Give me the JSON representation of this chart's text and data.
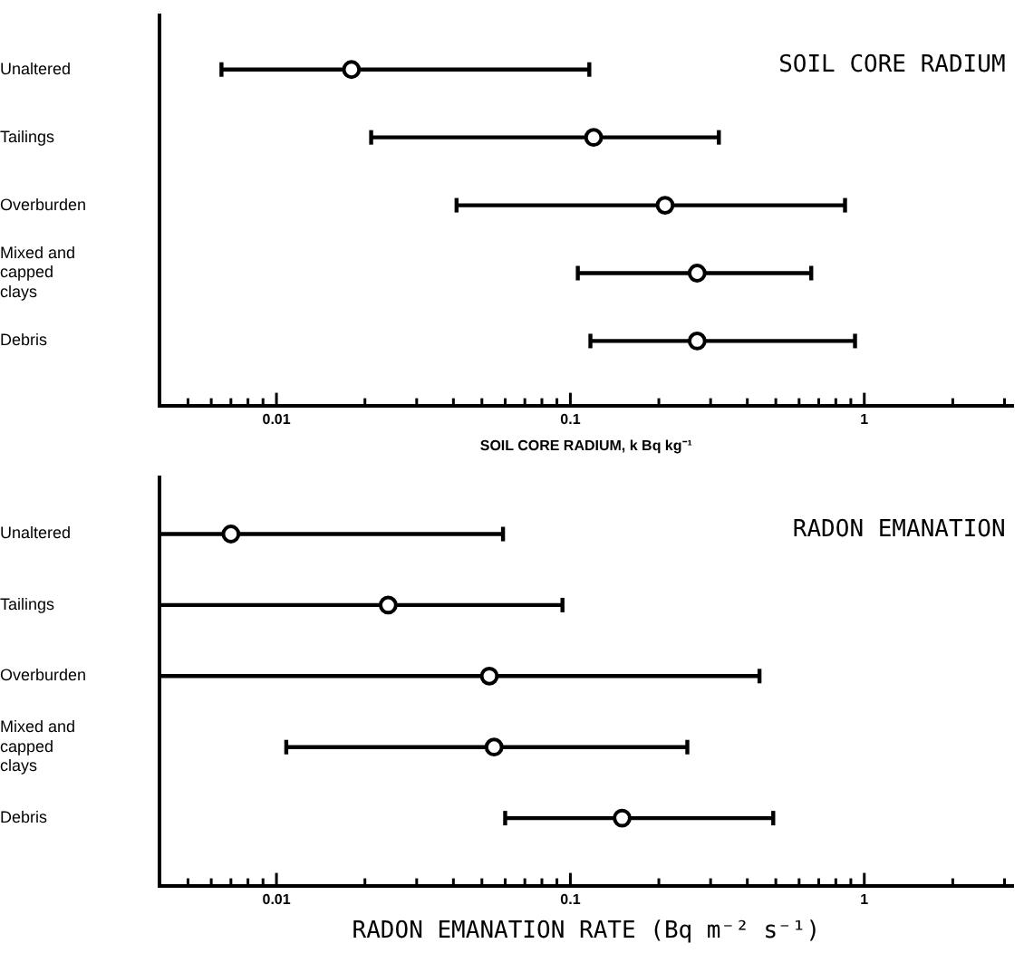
{
  "chart_data": [
    {
      "type": "scatter",
      "orientation": "horizontal",
      "title": "SOIL CORE RADIUM",
      "xlabel": "SOIL CORE RADIUM, k Bq kg⁻¹",
      "categories": [
        "Unaltered",
        "Tailings",
        "Overburden",
        "Mixed and capped clays",
        "Debris"
      ],
      "values": [
        0.018,
        0.12,
        0.21,
        0.27,
        0.27
      ],
      "errors": [
        [
          0.0065,
          0.116
        ],
        [
          0.021,
          0.32
        ],
        [
          0.041,
          0.86
        ],
        [
          0.106,
          0.66
        ],
        [
          0.117,
          0.93
        ]
      ],
      "color": "#000000",
      "marker": "circle",
      "log": "x",
      "xlim": [
        0.004,
        3.2
      ],
      "xticks": [
        {
          "value": 0.004,
          "label": null
        },
        {
          "value": 0.005,
          "label": null
        },
        {
          "value": 0.006,
          "label": null
        },
        {
          "value": 0.007,
          "label": null
        },
        {
          "value": 0.008,
          "label": null
        },
        {
          "value": 0.009,
          "label": null
        },
        0.01,
        {
          "value": 0.02,
          "label": null
        },
        {
          "value": 0.03,
          "label": null
        },
        {
          "value": 0.04,
          "label": null
        },
        {
          "value": 0.05,
          "label": null
        },
        {
          "value": 0.06,
          "label": null
        },
        {
          "value": 0.07,
          "label": null
        },
        {
          "value": 0.08,
          "label": null
        },
        {
          "value": 0.09,
          "label": null
        },
        0.1,
        {
          "value": 0.2,
          "label": null
        },
        {
          "value": 0.3,
          "label": null
        },
        {
          "value": 0.4,
          "label": null
        },
        {
          "value": 0.5,
          "label": null
        },
        {
          "value": 0.6,
          "label": null
        },
        {
          "value": 0.7,
          "label": null
        },
        {
          "value": 0.8,
          "label": null
        },
        {
          "value": 0.9,
          "label": null
        },
        1,
        {
          "value": 2,
          "label": null
        },
        {
          "value": 3,
          "label": null
        }
      ]
    },
    {
      "type": "scatter",
      "orientation": "horizontal",
      "title": "RADON EMANATION",
      "xlabel": "RADON EMANATION RATE (Bq m⁻² s⁻¹)",
      "categories": [
        "Unaltered",
        "Tailings",
        "Overburden",
        "Mixed and capped clays",
        "Debris"
      ],
      "values": [
        0.007,
        0.024,
        0.053,
        0.055,
        0.15
      ],
      "errors": [
        [
          0.004,
          0.059
        ],
        [
          0.004,
          0.094
        ],
        [
          0.004,
          0.44
        ],
        [
          0.0108,
          0.25
        ],
        [
          0.06,
          0.49
        ]
      ],
      "color": "#000000",
      "marker": "circle",
      "log": "x",
      "xlim": [
        0.004,
        3.2
      ],
      "xticks": [
        {
          "value": 0.004,
          "label": null
        },
        {
          "value": 0.005,
          "label": null
        },
        {
          "value": 0.006,
          "label": null
        },
        {
          "value": 0.007,
          "label": null
        },
        {
          "value": 0.008,
          "label": null
        },
        {
          "value": 0.009,
          "label": null
        },
        0.01,
        {
          "value": 0.02,
          "label": null
        },
        {
          "value": 0.03,
          "label": null
        },
        {
          "value": 0.04,
          "label": null
        },
        {
          "value": 0.05,
          "label": null
        },
        {
          "value": 0.06,
          "label": null
        },
        {
          "value": 0.07,
          "label": null
        },
        {
          "value": 0.08,
          "label": null
        },
        {
          "value": 0.09,
          "label": null
        },
        0.1,
        {
          "value": 0.2,
          "label": null
        },
        {
          "value": 0.3,
          "label": null
        },
        {
          "value": 0.4,
          "label": null
        },
        {
          "value": 0.5,
          "label": null
        },
        {
          "value": 0.6,
          "label": null
        },
        {
          "value": 0.7,
          "label": null
        },
        {
          "value": 0.8,
          "label": null
        },
        {
          "value": 0.9,
          "label": null
        },
        1,
        {
          "value": 2,
          "label": null
        },
        {
          "value": 3,
          "label": null
        }
      ]
    }
  ]
}
